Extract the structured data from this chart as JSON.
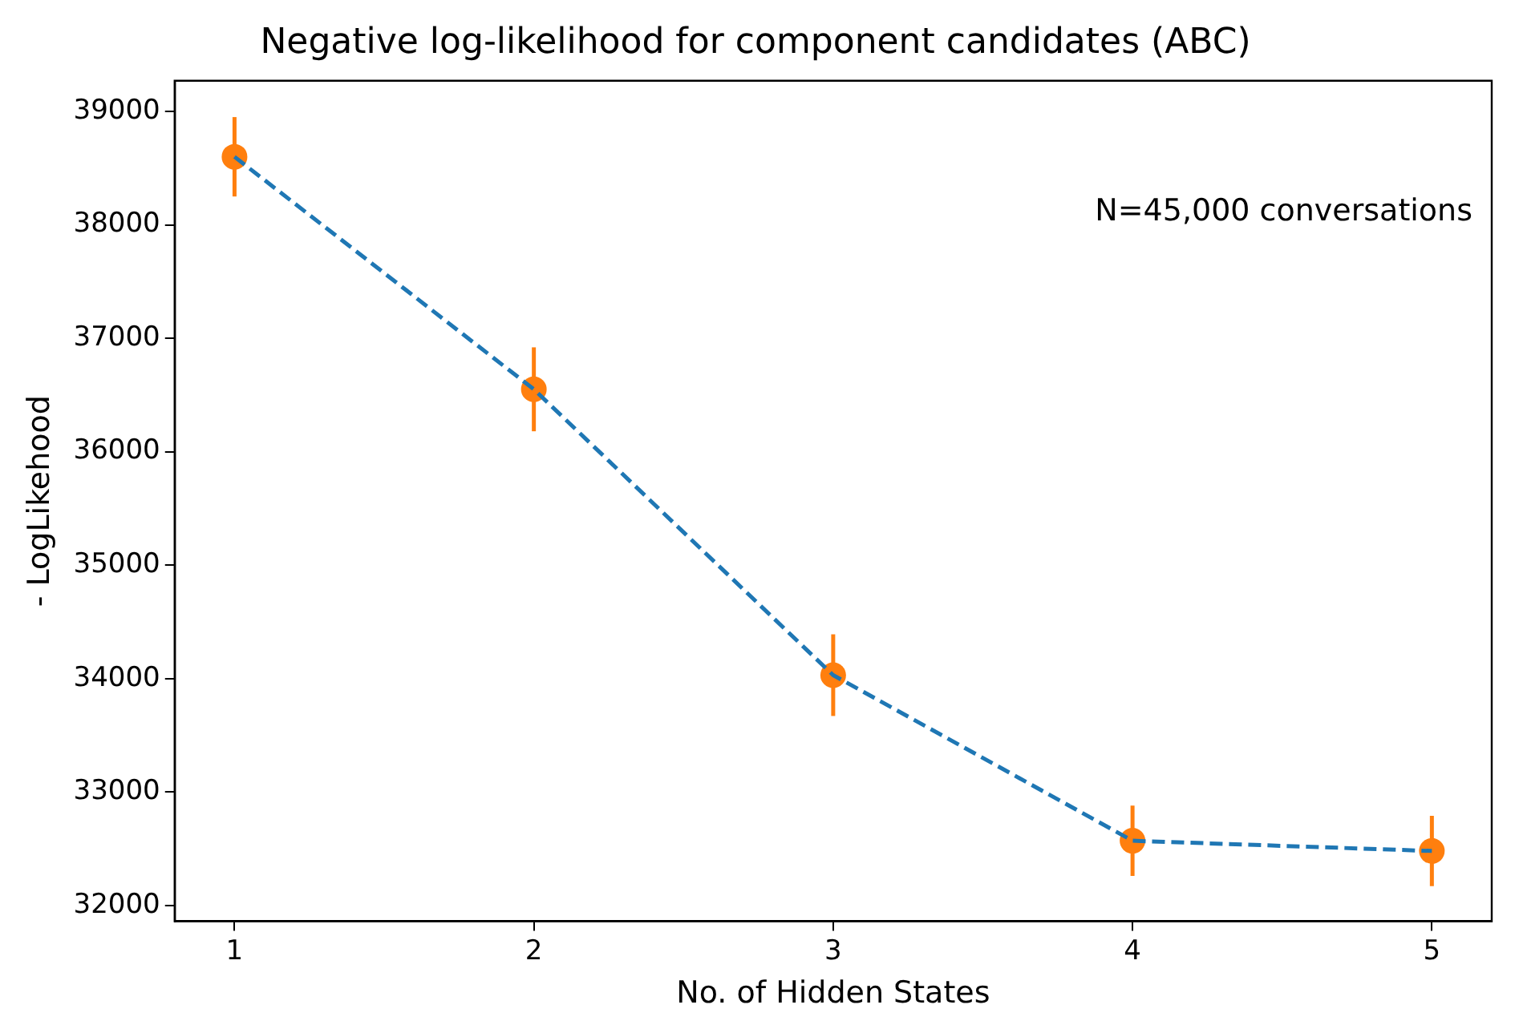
{
  "chart_data": {
    "type": "line",
    "title": "Negative log-likelihood for component candidates (ABC)",
    "xlabel": "No. of Hidden States",
    "ylabel": "- LogLikehood",
    "x": [
      1,
      2,
      3,
      4,
      5
    ],
    "series": [
      {
        "type": "line",
        "color": "#1f77b4",
        "values": [
          38600,
          36550,
          34030,
          32570,
          32480
        ],
        "line_style": "dashed",
        "marker": "none"
      },
      {
        "type": "scatter",
        "color": "#ff7f0e",
        "values": [
          38600,
          36550,
          34030,
          32570,
          32480
        ],
        "errors": [
          350,
          370,
          360,
          310,
          310
        ],
        "marker": "circle"
      }
    ],
    "xlim": [
      0.8,
      5.2
    ],
    "xticks": [
      1,
      2,
      3,
      4,
      5
    ],
    "ylim": [
      31860,
      39270
    ],
    "yticks": [
      32000,
      33000,
      34000,
      35000,
      36000,
      37000,
      38000,
      39000
    ],
    "grid": false,
    "legend": false,
    "annotations": [
      "N=45,000 conversations"
    ]
  }
}
